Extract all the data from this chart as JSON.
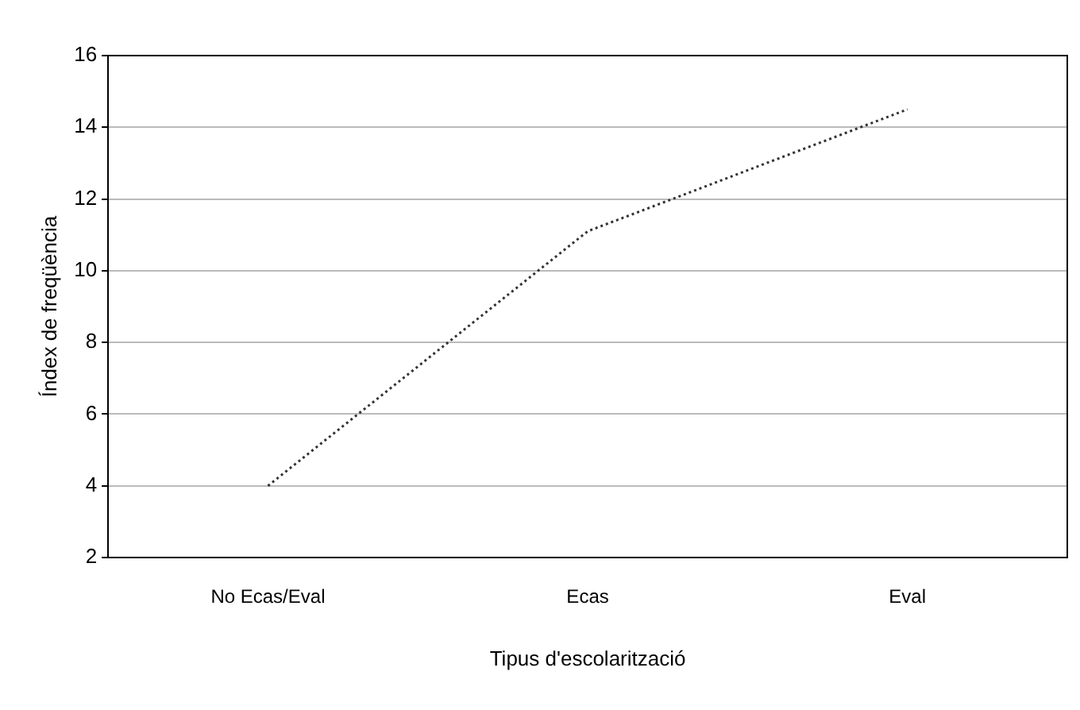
{
  "chart_data": {
    "type": "line",
    "xlabel": "Tipus d'escolarització",
    "ylabel": "Índex de freqüència",
    "categories": [
      "No Ecas/Eval",
      "Ecas",
      "Eval"
    ],
    "series": [
      {
        "color": "#333333",
        "values": [
          4,
          11.1,
          14.5
        ]
      }
    ],
    "ylim": [
      2,
      16
    ],
    "yticks": [
      2,
      4,
      6,
      8,
      10,
      12,
      14,
      16
    ],
    "grid": "y",
    "legend": false,
    "marker": "none",
    "line_style": "dotted"
  }
}
